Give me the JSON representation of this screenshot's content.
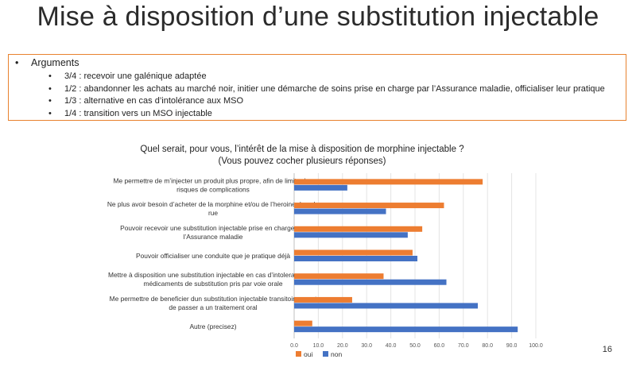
{
  "slide": {
    "title": "Mise à disposition d’une substitution injectable",
    "page_number": "16"
  },
  "arguments": {
    "heading": "Arguments",
    "items": [
      "3/4 : recevoir une galénique adaptée",
      "1/2 : abandonner les achats au marché noir, initier une démarche de soins prise en charge par l’Assurance maladie, officialiser leur pratique",
      "1/3  :  alternative en cas d’intolérance aux MSO",
      "1/4  : transition vers un MSO injectable"
    ]
  },
  "chart_data": {
    "type": "bar",
    "orientation": "horizontal",
    "title": "Quel serait, pour vous, l’intérêt de la mise à disposition de morphine injectable ?",
    "subtitle": "(Vous pouvez cocher plusieurs réponses)",
    "categories": [
      [
        "Me permettre de m’injecter un produit plus propre, afin de limiter les",
        "risques de complications"
      ],
      [
        "Ne plus avoir besoin d’acheter de la morphine et/ou de l’heroine dans la",
        "rue"
      ],
      [
        "Pouvoir recevoir une substitution injectable prise en charge par",
        "l’Assurance maladie"
      ],
      [
        "Pouvoir officialiser une conduite que je pratique déjà"
      ],
      [
        "Mettre à disposition une substitution injectable en cas d’intolerance aux",
        "médicaments de substitution pris par voie orale"
      ],
      [
        "Me permettre de beneficier dun substitution injectable transitoire avant",
        "de passer a  un traitement oral"
      ],
      [
        "Autre (precisez)"
      ]
    ],
    "series": [
      {
        "name": "oui",
        "color": "#ed7d31",
        "values": [
          78,
          62,
          53,
          49,
          37,
          24,
          7.5
        ]
      },
      {
        "name": "non",
        "color": "#4472c4",
        "values": [
          22,
          38,
          47,
          51,
          63,
          76,
          92.5
        ]
      }
    ],
    "xlim": [
      0,
      100
    ],
    "xticks": [
      "0.0",
      "10.0",
      "20.0",
      "30.0",
      "40.0",
      "50.0",
      "60.0",
      "70.0",
      "80.0",
      "90.0",
      "100.0"
    ],
    "grid": true,
    "legend_position": "bottom-left"
  }
}
